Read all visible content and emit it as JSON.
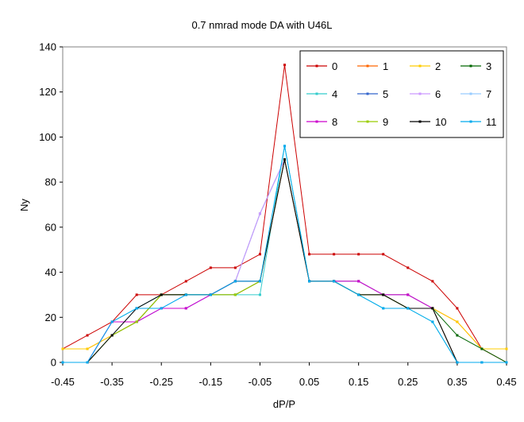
{
  "chart_data": {
    "type": "line",
    "title": "0.7 nmrad mode DA with U46L",
    "xlabel": "dP/P",
    "ylabel": "Ny",
    "xlim": [
      -0.45,
      0.45
    ],
    "ylim": [
      0,
      140
    ],
    "x_ticks": [
      "-0.45",
      "-0.35",
      "-0.25",
      "-0.15",
      "-0.05",
      "0.05",
      "0.15",
      "0.25",
      "0.35",
      "0.45"
    ],
    "x_tick_values": [
      -0.45,
      -0.35,
      -0.25,
      -0.15,
      -0.05,
      0.05,
      0.15,
      0.25,
      0.35,
      0.45
    ],
    "y_ticks": [
      "0",
      "20",
      "40",
      "60",
      "80",
      "100",
      "120",
      "140"
    ],
    "y_tick_values": [
      0,
      20,
      40,
      60,
      80,
      100,
      120,
      140
    ],
    "grid": false,
    "legend_position": "top-right",
    "x": [
      -0.45,
      -0.4,
      -0.35,
      -0.3,
      -0.25,
      -0.2,
      -0.15,
      -0.1,
      -0.05,
      0,
      0.05,
      0.1,
      0.15,
      0.2,
      0.25,
      0.3,
      0.35,
      0.4,
      0.45
    ],
    "series": [
      {
        "name": "0",
        "color": "#cc0000",
        "values": [
          6,
          12,
          18,
          30,
          30,
          36,
          42,
          42,
          48,
          132,
          48,
          48,
          48,
          48,
          42,
          36,
          24,
          6,
          0
        ]
      },
      {
        "name": "1",
        "color": "#ff6600",
        "values": [
          6,
          6,
          12,
          18,
          30,
          30,
          30,
          30,
          36,
          90,
          36,
          36,
          36,
          30,
          30,
          24,
          18,
          6,
          6
        ]
      },
      {
        "name": "2",
        "color": "#ffcc00",
        "values": [
          6,
          6,
          12,
          18,
          30,
          30,
          30,
          30,
          36,
          90,
          36,
          36,
          36,
          30,
          30,
          24,
          18,
          6,
          6
        ]
      },
      {
        "name": "3",
        "color": "#006600",
        "values": [
          0,
          0,
          12,
          18,
          30,
          30,
          30,
          30,
          36,
          90,
          36,
          36,
          30,
          30,
          24,
          24,
          12,
          6,
          0
        ]
      },
      {
        "name": "4",
        "color": "#33cccc",
        "values": [
          0,
          0,
          18,
          24,
          30,
          30,
          30,
          30,
          30,
          96,
          36,
          36,
          30,
          24,
          24,
          18,
          0,
          0,
          0
        ]
      },
      {
        "name": "5",
        "color": "#3366cc",
        "values": [
          0,
          0,
          18,
          18,
          24,
          24,
          30,
          36,
          66,
          90,
          36,
          36,
          36,
          30,
          30,
          24,
          0,
          0,
          0
        ]
      },
      {
        "name": "6",
        "color": "#cc99ff",
        "values": [
          0,
          0,
          18,
          18,
          24,
          24,
          30,
          36,
          66,
          90,
          36,
          36,
          36,
          30,
          30,
          24,
          0,
          0,
          0
        ]
      },
      {
        "name": "7",
        "color": "#99ccff",
        "values": [
          0,
          0,
          12,
          24,
          24,
          30,
          30,
          36,
          36,
          90,
          36,
          36,
          36,
          30,
          30,
          24,
          0,
          0,
          0
        ]
      },
      {
        "name": "8",
        "color": "#cc00cc",
        "values": [
          0,
          0,
          18,
          18,
          24,
          24,
          30,
          36,
          36,
          90,
          36,
          36,
          36,
          30,
          30,
          24,
          0,
          0,
          0
        ]
      },
      {
        "name": "9",
        "color": "#99cc00",
        "values": [
          0,
          0,
          12,
          18,
          30,
          30,
          30,
          30,
          36,
          90,
          36,
          36,
          30,
          30,
          24,
          24,
          0,
          0,
          0
        ]
      },
      {
        "name": "10",
        "color": "#000000",
        "values": [
          0,
          0,
          12,
          24,
          30,
          30,
          30,
          36,
          36,
          90,
          36,
          36,
          30,
          30,
          24,
          24,
          0,
          0,
          0
        ]
      },
      {
        "name": "11",
        "color": "#00aaee",
        "values": [
          0,
          0,
          18,
          24,
          24,
          30,
          30,
          36,
          36,
          96,
          36,
          36,
          30,
          24,
          24,
          18,
          0,
          0,
          0
        ]
      }
    ]
  }
}
